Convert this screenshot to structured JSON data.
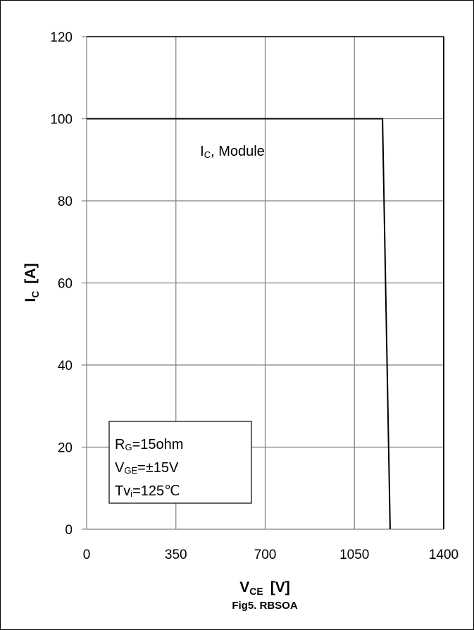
{
  "chart_data": {
    "type": "line",
    "title": "",
    "caption": "Fig5. RBSOA",
    "xlabel": {
      "main": "V",
      "sub": "CE",
      "unit": "[V]"
    },
    "ylabel": {
      "main": "I",
      "sub": "C",
      "unit": "[A]"
    },
    "xlim": [
      0,
      1400
    ],
    "ylim": [
      0,
      120
    ],
    "x_ticks": [
      0,
      350,
      700,
      1050,
      1400
    ],
    "y_ticks": [
      0,
      20,
      40,
      60,
      80,
      100,
      120
    ],
    "grid": true,
    "series": [
      {
        "name": "",
        "color": "#000000",
        "x": [
          0,
          1160,
          1190
        ],
        "y": [
          100,
          100,
          0
        ]
      }
    ],
    "curve_label": {
      "main": "I",
      "sub": "C",
      "rest": ", Module",
      "x": 445,
      "y": 91
    },
    "conditions": [
      {
        "main": "R",
        "sub": "G",
        "rest": "=15ohm"
      },
      {
        "main": "V",
        "sub": "GE",
        "rest": "=±15V"
      },
      {
        "main": "Tv",
        "sub": "i",
        "rest": "=125℃"
      }
    ]
  }
}
